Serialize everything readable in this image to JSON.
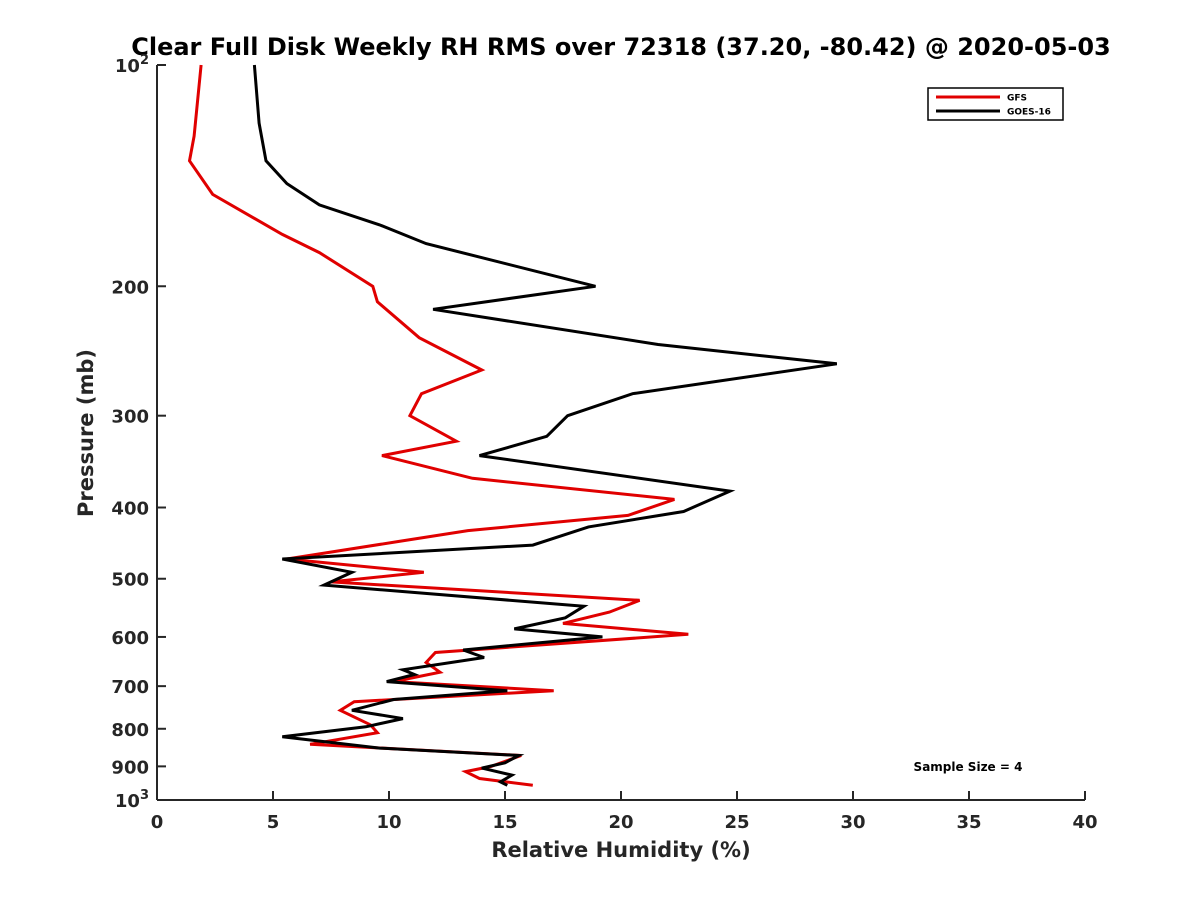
{
  "chart_data": {
    "type": "line",
    "title": "Clear Full Disk Weekly RH RMS over 72318 (37.20, -80.42) @ 2020-05-03",
    "xlabel": "Relative Humidity (%)",
    "ylabel": "Pressure (mb)",
    "xlim": [
      0,
      40
    ],
    "ylim": [
      100,
      1000
    ],
    "yscale": "log",
    "y_reversed": true,
    "xticks": [
      0,
      5,
      10,
      15,
      20,
      25,
      30,
      35,
      40
    ],
    "yticks": [
      {
        "value": 100,
        "label": "10",
        "exp": "2"
      },
      {
        "value": 200,
        "label": "200"
      },
      {
        "value": 300,
        "label": "300"
      },
      {
        "value": 400,
        "label": "400"
      },
      {
        "value": 500,
        "label": "500"
      },
      {
        "value": 600,
        "label": "600"
      },
      {
        "value": 700,
        "label": "700"
      },
      {
        "value": 800,
        "label": "800"
      },
      {
        "value": 900,
        "label": "900"
      },
      {
        "value": 1000,
        "label": "10",
        "exp": "3"
      }
    ],
    "grid": false,
    "legend_position": "top-right",
    "annotation": "Sample Size = 4",
    "series": [
      {
        "name": "GFS",
        "color": "#e00000",
        "points": [
          [
            1.9,
            100
          ],
          [
            1.6,
            125
          ],
          [
            1.4,
            135
          ],
          [
            2.4,
            150
          ],
          [
            5.4,
            170
          ],
          [
            7.0,
            180
          ],
          [
            9.3,
            200
          ],
          [
            9.5,
            210
          ],
          [
            11.3,
            235
          ],
          [
            14.0,
            260
          ],
          [
            11.4,
            280
          ],
          [
            10.9,
            300
          ],
          [
            12.9,
            325
          ],
          [
            9.7,
            340
          ],
          [
            13.6,
            365
          ],
          [
            22.3,
            390
          ],
          [
            20.3,
            410
          ],
          [
            13.4,
            430
          ],
          [
            10.4,
            445
          ],
          [
            5.6,
            470
          ],
          [
            11.5,
            490
          ],
          [
            7.5,
            505
          ],
          [
            20.8,
            535
          ],
          [
            19.5,
            555
          ],
          [
            17.5,
            575
          ],
          [
            22.9,
            595
          ],
          [
            12.0,
            630
          ],
          [
            11.6,
            650
          ],
          [
            12.2,
            670
          ],
          [
            10.2,
            690
          ],
          [
            17.1,
            710
          ],
          [
            8.5,
            735
          ],
          [
            7.9,
            755
          ],
          [
            9.2,
            790
          ],
          [
            9.5,
            810
          ],
          [
            6.6,
            840
          ],
          [
            15.7,
            870
          ],
          [
            14.4,
            900
          ],
          [
            13.3,
            915
          ],
          [
            13.9,
            935
          ],
          [
            16.2,
            955
          ]
        ]
      },
      {
        "name": "GOES-16",
        "color": "#000000",
        "points": [
          [
            4.2,
            100
          ],
          [
            4.4,
            120
          ],
          [
            4.7,
            135
          ],
          [
            5.6,
            145
          ],
          [
            7.0,
            155
          ],
          [
            9.6,
            165
          ],
          [
            11.6,
            175
          ],
          [
            18.9,
            200
          ],
          [
            11.9,
            215
          ],
          [
            21.6,
            240
          ],
          [
            29.3,
            255
          ],
          [
            20.5,
            280
          ],
          [
            17.7,
            300
          ],
          [
            16.8,
            320
          ],
          [
            13.9,
            340
          ],
          [
            24.7,
            380
          ],
          [
            22.7,
            405
          ],
          [
            18.6,
            425
          ],
          [
            16.2,
            450
          ],
          [
            5.4,
            470
          ],
          [
            8.4,
            490
          ],
          [
            7.2,
            510
          ],
          [
            18.4,
            545
          ],
          [
            17.6,
            565
          ],
          [
            15.4,
            585
          ],
          [
            19.2,
            600
          ],
          [
            13.2,
            625
          ],
          [
            14.1,
            640
          ],
          [
            10.6,
            665
          ],
          [
            11.1,
            675
          ],
          [
            9.9,
            690
          ],
          [
            15.1,
            710
          ],
          [
            10.2,
            730
          ],
          [
            8.4,
            755
          ],
          [
            10.6,
            775
          ],
          [
            9.0,
            795
          ],
          [
            5.4,
            820
          ],
          [
            9.6,
            850
          ],
          [
            15.6,
            870
          ],
          [
            15.0,
            890
          ],
          [
            14.0,
            905
          ],
          [
            15.3,
            925
          ],
          [
            14.8,
            945
          ],
          [
            15.1,
            955
          ]
        ]
      }
    ]
  }
}
